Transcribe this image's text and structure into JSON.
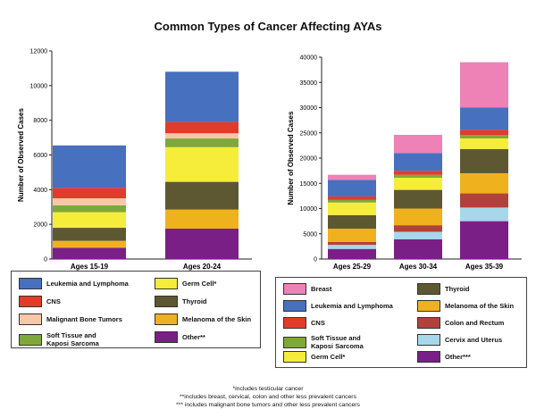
{
  "chart_data": {
    "title": "Common Types of Cancer Affecting AYAs",
    "charts": [
      {
        "type": "bar",
        "stacked": true,
        "ylabel": "Number of Observed Cases",
        "ylim": [
          0,
          12000
        ],
        "yticks": [
          0,
          2000,
          4000,
          6000,
          8000,
          10000,
          12000
        ],
        "categories": [
          "Ages 15-19",
          "Ages 20-24"
        ],
        "series": [
          {
            "name": "Other**",
            "color": "#7a1f86",
            "values": [
              650,
              1750
            ]
          },
          {
            "name": "Melanoma of the Skin",
            "color": "#f0b11e",
            "values": [
              400,
              1100
            ]
          },
          {
            "name": "Thyroid",
            "color": "#5e5832",
            "values": [
              750,
              1600
            ]
          },
          {
            "name": "Germ Cell*",
            "color": "#f5ed3a",
            "values": [
              900,
              2000
            ]
          },
          {
            "name": "Soft Tissue and Kaposi Sarcoma",
            "color": "#7fa83a",
            "values": [
              400,
              500
            ]
          },
          {
            "name": "Malignant Bone Tumors",
            "color": "#f8c7a8",
            "values": [
              400,
              300
            ]
          },
          {
            "name": "CNS",
            "color": "#e33b2a",
            "values": [
              600,
              650
            ]
          },
          {
            "name": "Leukemia and Lymphoma",
            "color": "#4770bf",
            "values": [
              2450,
              2900
            ]
          }
        ]
      },
      {
        "type": "bar",
        "stacked": true,
        "ylabel": "Number of Observed Cases",
        "ylim": [
          0,
          40000
        ],
        "yticks": [
          0,
          5000,
          10000,
          15000,
          20000,
          25000,
          30000,
          35000,
          40000
        ],
        "categories": [
          "Ages 25-29",
          "Ages 30-34",
          "Ages 35-39"
        ],
        "series": [
          {
            "name": "Other***",
            "color": "#7a1f86",
            "values": [
              2000,
              3900,
              7500
            ]
          },
          {
            "name": "Cervix and Uterus",
            "color": "#a6d8ea",
            "values": [
              800,
              1500,
              2700
            ]
          },
          {
            "name": "Colon and Rectum",
            "color": "#b2413b",
            "values": [
              600,
              1300,
              2800
            ]
          },
          {
            "name": "Melanoma of the Skin",
            "color": "#f0b11e",
            "values": [
              2600,
              3300,
              4000
            ]
          },
          {
            "name": "Thyroid",
            "color": "#5e5832",
            "values": [
              2700,
              3700,
              4800
            ]
          },
          {
            "name": "Germ Cell*",
            "color": "#f5ed3a",
            "values": [
              2500,
              2400,
              2100
            ]
          },
          {
            "name": "Soft Tissue and Kaposi Sarcoma",
            "color": "#7fa83a",
            "values": [
              500,
              600,
              700
            ]
          },
          {
            "name": "CNS",
            "color": "#e33b2a",
            "values": [
              700,
              800,
              1000
            ]
          },
          {
            "name": "Leukemia and Lymphoma",
            "color": "#4770bf",
            "values": [
              3300,
              3500,
              4400
            ]
          },
          {
            "name": "Breast",
            "color": "#ee82b6",
            "values": [
              1000,
              3600,
              9000
            ]
          }
        ]
      }
    ]
  },
  "legends": [
    {
      "items": [
        {
          "label": "Leukemia and Lymphoma",
          "color": "#4770bf"
        },
        {
          "label": "Germ Cell*",
          "color": "#f5ed3a"
        },
        {
          "label": "CNS",
          "color": "#e33b2a"
        },
        {
          "label": "Thyroid",
          "color": "#5e5832"
        },
        {
          "label": "Malignant Bone Tumors",
          "color": "#f8c7a8"
        },
        {
          "label": "Melanoma of the Skin",
          "color": "#f0b11e"
        },
        {
          "label": "Soft Tissue and\nKaposi Sarcoma",
          "color": "#7fa83a"
        },
        {
          "label": "Other**",
          "color": "#7a1f86"
        }
      ]
    },
    {
      "items": [
        {
          "label": "Breast",
          "color": "#ee82b6"
        },
        {
          "label": "Thyroid",
          "color": "#5e5832"
        },
        {
          "label": "Leukemia and Lymphoma",
          "color": "#4770bf"
        },
        {
          "label": "Melanoma of the Skin",
          "color": "#f0b11e"
        },
        {
          "label": "CNS",
          "color": "#e33b2a"
        },
        {
          "label": "Colon and Rectum",
          "color": "#b2413b"
        },
        {
          "label": "Soft Tissue and\nKaposi Sarcoma",
          "color": "#7fa83a"
        },
        {
          "label": "Cervix and Uterus",
          "color": "#a6d8ea"
        },
        {
          "label": "Germ Cell*",
          "color": "#f5ed3a"
        },
        {
          "label": "Other***",
          "color": "#7a1f86"
        }
      ]
    }
  ],
  "footnotes": [
    "*includes testicular cancer",
    "**includes breast, cervical, colon and other less prevalent cancers",
    "*** includes malignant bone tumors and other less prevalent cancers"
  ]
}
